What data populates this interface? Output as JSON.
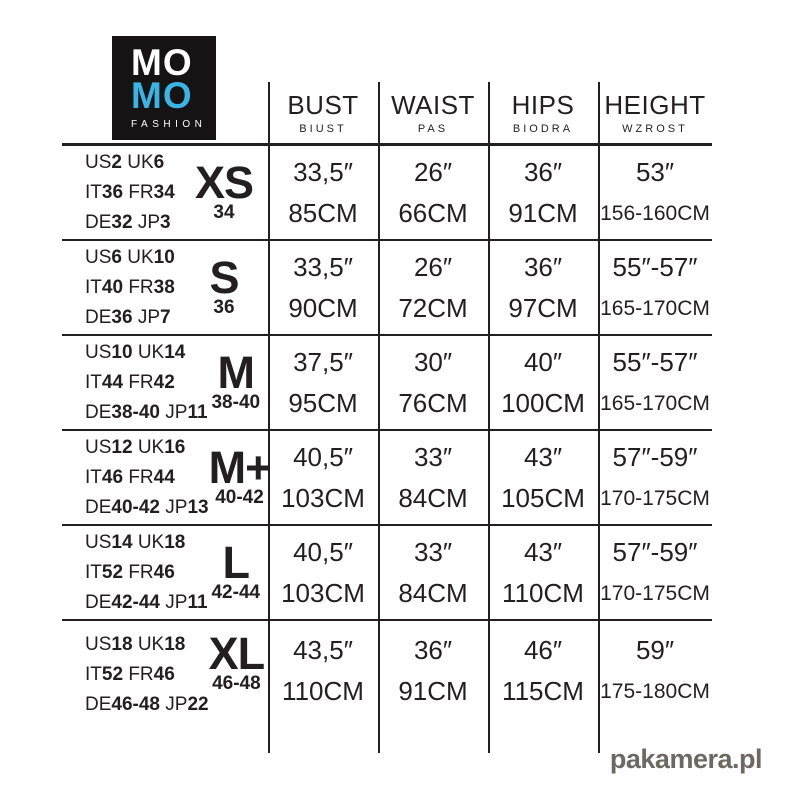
{
  "brand": {
    "name_top": "MO",
    "name_bottom": "MO",
    "tagline": "FASHION",
    "box_color": "#151314",
    "accent_color": "#39b4e5"
  },
  "colors": {
    "text": "#231f20",
    "grid_line": "#231f20",
    "watermark": "#6e6862"
  },
  "header": {
    "columns": [
      {
        "en": "BUST",
        "pl": "BIUST"
      },
      {
        "en": "WAIST",
        "pl": "PAS"
      },
      {
        "en": "HIPS",
        "pl": "BIODRA"
      },
      {
        "en": "HEIGHT",
        "pl": "WZROST"
      }
    ]
  },
  "table": {
    "rows": [
      {
        "size_label": "XS",
        "size_eu": "34",
        "conversion_lines": [
          [
            {
              "system": "US",
              "value": "2"
            },
            {
              "system": "UK",
              "value": "6"
            }
          ],
          [
            {
              "system": "IT",
              "value": "36"
            },
            {
              "system": "FR",
              "value": "34"
            }
          ],
          [
            {
              "system": "DE",
              "value": "32"
            },
            {
              "system": "JP",
              "value": "3"
            }
          ]
        ],
        "measurements": [
          {
            "inches": "33,5″",
            "cm": "85CM"
          },
          {
            "inches": "26″",
            "cm": "66CM"
          },
          {
            "inches": "36″",
            "cm": "91CM"
          },
          {
            "inches": "53″",
            "cm": "156-160CM"
          }
        ]
      },
      {
        "size_label": "S",
        "size_eu": "36",
        "conversion_lines": [
          [
            {
              "system": "US",
              "value": "6"
            },
            {
              "system": "UK",
              "value": "10"
            }
          ],
          [
            {
              "system": "IT",
              "value": "40"
            },
            {
              "system": "FR",
              "value": "38"
            }
          ],
          [
            {
              "system": "DE",
              "value": "36"
            },
            {
              "system": "JP",
              "value": "7"
            }
          ]
        ],
        "measurements": [
          {
            "inches": "33,5″",
            "cm": "90CM"
          },
          {
            "inches": "26″",
            "cm": "72CM"
          },
          {
            "inches": "36″",
            "cm": "97CM"
          },
          {
            "inches": "55″-57″",
            "cm": "165-170CM"
          }
        ]
      },
      {
        "size_label": "M",
        "size_eu": "38-40",
        "conversion_lines": [
          [
            {
              "system": "US",
              "value": "10"
            },
            {
              "system": "UK",
              "value": "14"
            }
          ],
          [
            {
              "system": "IT",
              "value": "44"
            },
            {
              "system": "FR",
              "value": "42"
            }
          ],
          [
            {
              "system": "DE",
              "value": "38-40"
            },
            {
              "system": "JP",
              "value": "11"
            }
          ]
        ],
        "measurements": [
          {
            "inches": "37,5″",
            "cm": "95CM"
          },
          {
            "inches": "30″",
            "cm": "76CM"
          },
          {
            "inches": "40″",
            "cm": "100CM"
          },
          {
            "inches": "55″-57″",
            "cm": "165-170CM"
          }
        ]
      },
      {
        "size_label": "M+",
        "size_eu": "40-42",
        "conversion_lines": [
          [
            {
              "system": "US",
              "value": "12"
            },
            {
              "system": "UK",
              "value": "16"
            }
          ],
          [
            {
              "system": "IT",
              "value": "46"
            },
            {
              "system": "FR",
              "value": "44"
            }
          ],
          [
            {
              "system": "DE",
              "value": "40-42"
            },
            {
              "system": "JP",
              "value": "13"
            }
          ]
        ],
        "measurements": [
          {
            "inches": "40,5″",
            "cm": "103CM"
          },
          {
            "inches": "33″",
            "cm": "84CM"
          },
          {
            "inches": "43″",
            "cm": "105CM"
          },
          {
            "inches": "57″-59″",
            "cm": "170-175CM"
          }
        ]
      },
      {
        "size_label": "L",
        "size_eu": "42-44",
        "conversion_lines": [
          [
            {
              "system": "US",
              "value": "14"
            },
            {
              "system": "UK",
              "value": "18"
            }
          ],
          [
            {
              "system": "IT",
              "value": "52"
            },
            {
              "system": "FR",
              "value": "46"
            }
          ],
          [
            {
              "system": "DE",
              "value": "42-44"
            },
            {
              "system": "JP",
              "value": "11"
            }
          ]
        ],
        "measurements": [
          {
            "inches": "40,5″",
            "cm": "103CM"
          },
          {
            "inches": "33″",
            "cm": "84CM"
          },
          {
            "inches": "43″",
            "cm": "110CM"
          },
          {
            "inches": "57″-59″",
            "cm": "170-175CM"
          }
        ]
      },
      {
        "size_label": "XL",
        "size_eu": "46-48",
        "conversion_lines": [
          [
            {
              "system": "US",
              "value": "18"
            },
            {
              "system": "UK",
              "value": "18"
            }
          ],
          [
            {
              "system": "IT",
              "value": "52"
            },
            {
              "system": "FR",
              "value": "46"
            }
          ],
          [
            {
              "system": "DE",
              "value": "46-48"
            },
            {
              "system": "JP",
              "value": "22"
            }
          ]
        ],
        "measurements": [
          {
            "inches": "43,5″",
            "cm": "110CM"
          },
          {
            "inches": "36″",
            "cm": "91CM"
          },
          {
            "inches": "46″",
            "cm": "115CM"
          },
          {
            "inches": "59″",
            "cm": "175-180CM"
          }
        ]
      }
    ]
  },
  "watermark": {
    "text": "pakamera.pl"
  }
}
